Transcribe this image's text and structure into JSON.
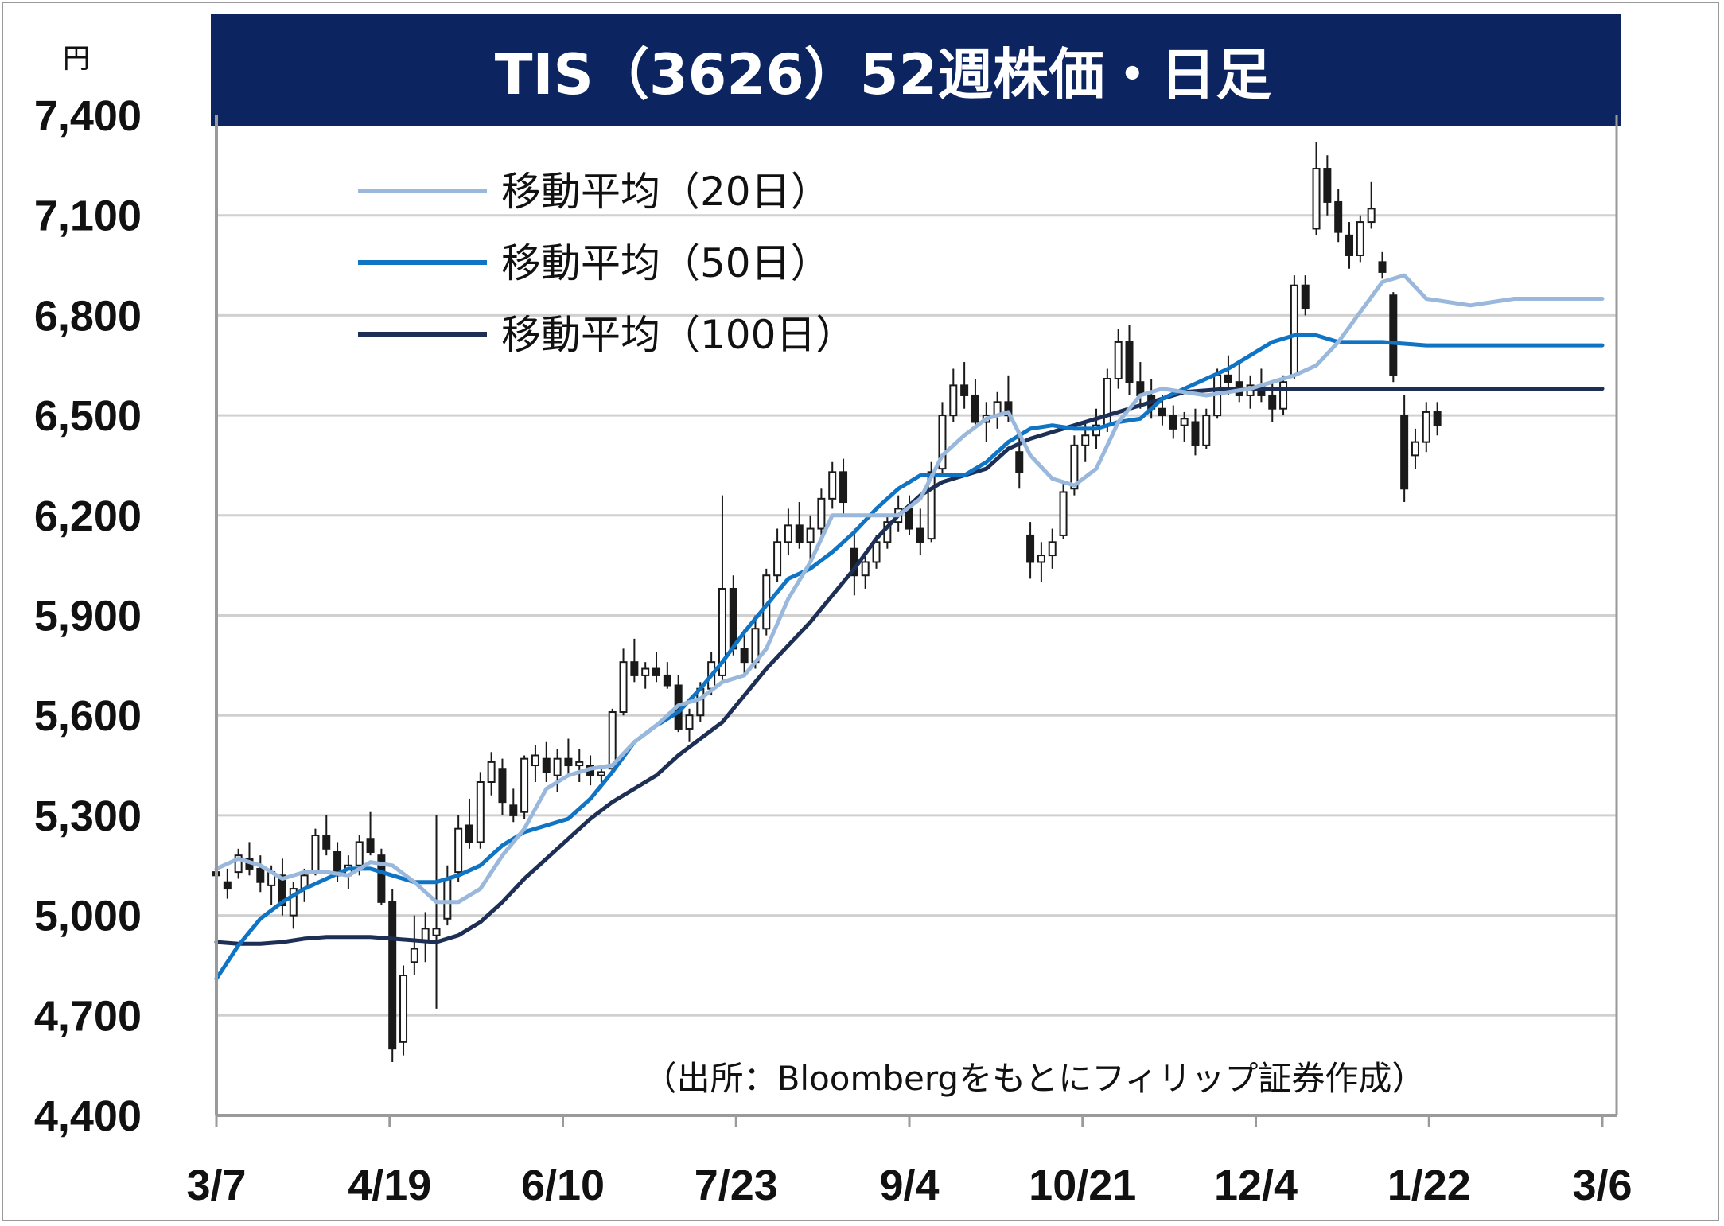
{
  "chart_data": {
    "type": "line",
    "title": "TIS（3626）52週株価・日足",
    "unit": "円",
    "source": "（出所：Bloombergをもとにフィリップ証券作成）",
    "ylim": [
      4400,
      7400
    ],
    "yticks": [
      7400,
      7100,
      6800,
      6500,
      6200,
      5900,
      5600,
      5300,
      5000,
      4700,
      4400
    ],
    "ytick_labels": [
      "7,400",
      "7,100",
      "6,800",
      "6,500",
      "6,200",
      "5,900",
      "5,600",
      "5,300",
      "5,000",
      "4,700",
      "4,400"
    ],
    "xtick_labels": [
      "3/7",
      "4/19",
      "6/10",
      "7/23",
      "9/4",
      "10/21",
      "12/4",
      "1/22",
      "3/6"
    ],
    "grid": true,
    "legend_position": "top-left",
    "colors": {
      "title_bg": "#0c2460",
      "candle_stroke": "#1a1a1a",
      "ma20": "#9ab8dc",
      "ma50": "#1074c4",
      "ma100": "#1d2f55",
      "grid": "#d0d0d0",
      "axis": "#9a9a9a"
    },
    "series": [
      {
        "name": "移動平均（20日）",
        "key": "ma20",
        "x": [
          0,
          4,
          8,
          12,
          16,
          20,
          24,
          28,
          32,
          36,
          40,
          44,
          48,
          52,
          56,
          60,
          64,
          68,
          72,
          76,
          80,
          84,
          88,
          92,
          96,
          100,
          104,
          108,
          112,
          116,
          120,
          124,
          128,
          132,
          136,
          140,
          144,
          148,
          152,
          156,
          160,
          164,
          168,
          172,
          176,
          180,
          184,
          188,
          192,
          196,
          200,
          204,
          208,
          212,
          216,
          220,
          224,
          228,
          232,
          236,
          240,
          244,
          248,
          252
        ],
        "values": [
          5140,
          5170,
          5150,
          5110,
          5130,
          5130,
          5120,
          5160,
          5150,
          5100,
          5040,
          5040,
          5080,
          5180,
          5260,
          5380,
          5420,
          5440,
          5450,
          5520,
          5570,
          5630,
          5650,
          5700,
          5720,
          5800,
          5950,
          6060,
          6200,
          6200,
          6200,
          6200,
          6250,
          6380,
          6440,
          6490,
          6510,
          6380,
          6310,
          6290,
          6340,
          6480,
          6560,
          6580,
          6570,
          6560,
          6570,
          6580,
          6600,
          6620,
          6650,
          6720,
          6810,
          6900,
          6920,
          6850,
          6840,
          6830,
          6840,
          6850,
          6850,
          6850,
          6850,
          6850
        ]
      },
      {
        "name": "移動平均（50日）",
        "key": "ma50",
        "x": [
          0,
          4,
          8,
          12,
          16,
          20,
          24,
          28,
          32,
          36,
          40,
          44,
          48,
          52,
          56,
          60,
          64,
          68,
          72,
          76,
          80,
          84,
          88,
          92,
          96,
          100,
          104,
          108,
          112,
          116,
          120,
          124,
          128,
          132,
          136,
          140,
          144,
          148,
          152,
          156,
          160,
          164,
          168,
          172,
          176,
          180,
          184,
          188,
          192,
          196,
          200,
          204,
          208,
          212,
          216,
          220,
          224,
          228,
          232,
          236,
          240,
          244,
          248,
          252
        ],
        "values": [
          4810,
          4910,
          4990,
          5040,
          5080,
          5110,
          5140,
          5140,
          5120,
          5100,
          5100,
          5120,
          5150,
          5210,
          5250,
          5270,
          5290,
          5350,
          5430,
          5520,
          5570,
          5610,
          5680,
          5760,
          5850,
          5930,
          6010,
          6040,
          6090,
          6150,
          6220,
          6280,
          6320,
          6320,
          6320,
          6360,
          6420,
          6460,
          6470,
          6460,
          6460,
          6480,
          6490,
          6550,
          6580,
          6610,
          6640,
          6680,
          6720,
          6740,
          6740,
          6720,
          6720,
          6720,
          6715,
          6710,
          6710,
          6710,
          6710,
          6710,
          6710,
          6710,
          6710,
          6710
        ]
      },
      {
        "name": "移動平均（100日）",
        "key": "ma100",
        "x": [
          0,
          4,
          8,
          12,
          16,
          20,
          24,
          28,
          32,
          36,
          40,
          44,
          48,
          52,
          56,
          60,
          64,
          68,
          72,
          76,
          80,
          84,
          88,
          92,
          96,
          100,
          104,
          108,
          112,
          116,
          120,
          124,
          128,
          132,
          136,
          140,
          144,
          148,
          152,
          156,
          160,
          164,
          168,
          172,
          176,
          180,
          184,
          188,
          192,
          196,
          200,
          204,
          208,
          212,
          216,
          220,
          224,
          228,
          232,
          236,
          240,
          244,
          248,
          252
        ],
        "values": [
          4920,
          4915,
          4915,
          4920,
          4930,
          4935,
          4935,
          4935,
          4930,
          4925,
          4920,
          4940,
          4980,
          5040,
          5110,
          5170,
          5230,
          5290,
          5340,
          5380,
          5420,
          5480,
          5530,
          5580,
          5660,
          5740,
          5810,
          5880,
          5960,
          6040,
          6130,
          6200,
          6260,
          6300,
          6320,
          6340,
          6400,
          6430,
          6450,
          6470,
          6490,
          6510,
          6530,
          6550,
          6570,
          6575,
          6580,
          6580,
          6580,
          6580,
          6580,
          6580,
          6580,
          6580,
          6580,
          6580,
          6580,
          6580,
          6580,
          6580,
          6580,
          6580,
          6580,
          6580
        ]
      }
    ],
    "candles": [
      [
        0,
        5130,
        5160,
        5080,
        5120
      ],
      [
        2,
        5100,
        5140,
        5050,
        5080
      ],
      [
        4,
        5130,
        5200,
        5110,
        5180
      ],
      [
        6,
        5170,
        5220,
        5120,
        5140
      ],
      [
        8,
        5140,
        5180,
        5070,
        5100
      ],
      [
        10,
        5090,
        5150,
        5030,
        5130
      ],
      [
        12,
        5120,
        5170,
        5000,
        5030
      ],
      [
        14,
        5000,
        5100,
        4960,
        5080
      ],
      [
        16,
        5080,
        5140,
        5040,
        5120
      ],
      [
        18,
        5130,
        5260,
        5120,
        5240
      ],
      [
        20,
        5240,
        5300,
        5180,
        5200
      ],
      [
        22,
        5190,
        5220,
        5100,
        5120
      ],
      [
        24,
        5120,
        5180,
        5080,
        5150
      ],
      [
        26,
        5150,
        5240,
        5120,
        5220
      ],
      [
        28,
        5230,
        5310,
        5180,
        5190
      ],
      [
        30,
        5180,
        5200,
        5030,
        5040
      ],
      [
        32,
        5040,
        5080,
        4560,
        4600
      ],
      [
        34,
        4620,
        4850,
        4580,
        4820
      ],
      [
        36,
        4860,
        5000,
        4820,
        4900
      ],
      [
        38,
        4920,
        5010,
        4860,
        4960
      ],
      [
        40,
        4940,
        5300,
        4720,
        4960
      ],
      [
        42,
        4990,
        5150,
        4970,
        5110
      ],
      [
        44,
        5130,
        5300,
        5100,
        5260
      ],
      [
        46,
        5270,
        5350,
        5200,
        5220
      ],
      [
        48,
        5220,
        5430,
        5200,
        5400
      ],
      [
        50,
        5400,
        5490,
        5360,
        5460
      ],
      [
        52,
        5440,
        5470,
        5300,
        5340
      ],
      [
        54,
        5330,
        5380,
        5280,
        5300
      ],
      [
        56,
        5310,
        5480,
        5290,
        5470
      ],
      [
        58,
        5450,
        5510,
        5400,
        5480
      ],
      [
        60,
        5470,
        5520,
        5400,
        5430
      ],
      [
        62,
        5420,
        5500,
        5370,
        5470
      ],
      [
        64,
        5470,
        5530,
        5420,
        5450
      ],
      [
        66,
        5450,
        5500,
        5400,
        5460
      ],
      [
        68,
        5450,
        5480,
        5390,
        5420
      ],
      [
        70,
        5420,
        5450,
        5380,
        5430
      ],
      [
        72,
        5440,
        5620,
        5430,
        5610
      ],
      [
        74,
        5610,
        5800,
        5600,
        5760
      ],
      [
        76,
        5760,
        5830,
        5700,
        5720
      ],
      [
        78,
        5720,
        5760,
        5680,
        5740
      ],
      [
        80,
        5740,
        5790,
        5700,
        5720
      ],
      [
        82,
        5720,
        5760,
        5680,
        5690
      ],
      [
        84,
        5690,
        5720,
        5550,
        5560
      ],
      [
        86,
        5560,
        5620,
        5520,
        5600
      ],
      [
        88,
        5600,
        5700,
        5580,
        5680
      ],
      [
        90,
        5680,
        5790,
        5660,
        5760
      ],
      [
        92,
        5720,
        6260,
        5700,
        5980
      ],
      [
        94,
        5980,
        6020,
        5780,
        5800
      ],
      [
        96,
        5800,
        5860,
        5720,
        5760
      ],
      [
        98,
        5760,
        5900,
        5740,
        5860
      ],
      [
        100,
        5860,
        6040,
        5840,
        6020
      ],
      [
        102,
        6020,
        6160,
        6000,
        6120
      ],
      [
        104,
        6120,
        6220,
        6080,
        6170
      ],
      [
        106,
        6170,
        6240,
        6100,
        6120
      ],
      [
        108,
        6120,
        6200,
        6060,
        6160
      ],
      [
        110,
        6160,
        6280,
        6140,
        6250
      ],
      [
        112,
        6250,
        6360,
        6220,
        6330
      ],
      [
        114,
        6330,
        6370,
        6200,
        6240
      ],
      [
        116,
        6100,
        6160,
        5960,
        6020
      ],
      [
        118,
        6020,
        6080,
        5980,
        6060
      ],
      [
        120,
        6060,
        6140,
        6040,
        6120
      ],
      [
        122,
        6120,
        6200,
        6100,
        6180
      ],
      [
        124,
        6180,
        6260,
        6150,
        6220
      ],
      [
        126,
        6220,
        6260,
        6140,
        6160
      ],
      [
        128,
        6160,
        6220,
        6080,
        6120
      ],
      [
        130,
        6130,
        6360,
        6120,
        6330
      ],
      [
        132,
        6340,
        6540,
        6320,
        6500
      ],
      [
        134,
        6500,
        6640,
        6480,
        6590
      ],
      [
        136,
        6590,
        6660,
        6520,
        6560
      ],
      [
        138,
        6560,
        6610,
        6460,
        6480
      ],
      [
        140,
        6480,
        6540,
        6420,
        6500
      ],
      [
        142,
        6500,
        6570,
        6460,
        6540
      ],
      [
        144,
        6540,
        6620,
        6480,
        6500
      ],
      [
        146,
        6390,
        6440,
        6280,
        6330
      ],
      [
        148,
        6140,
        6180,
        6010,
        6060
      ],
      [
        150,
        6060,
        6120,
        6000,
        6080
      ],
      [
        152,
        6080,
        6160,
        6040,
        6120
      ],
      [
        154,
        6140,
        6300,
        6130,
        6270
      ],
      [
        156,
        6280,
        6440,
        6260,
        6410
      ],
      [
        158,
        6410,
        6480,
        6360,
        6440
      ],
      [
        160,
        6440,
        6520,
        6400,
        6470
      ],
      [
        162,
        6470,
        6640,
        6450,
        6610
      ],
      [
        164,
        6610,
        6760,
        6580,
        6720
      ],
      [
        166,
        6720,
        6770,
        6560,
        6600
      ],
      [
        168,
        6600,
        6660,
        6520,
        6560
      ],
      [
        170,
        6560,
        6610,
        6490,
        6520
      ],
      [
        172,
        6520,
        6560,
        6470,
        6500
      ],
      [
        174,
        6500,
        6530,
        6430,
        6460
      ],
      [
        176,
        6470,
        6510,
        6420,
        6490
      ],
      [
        178,
        6480,
        6520,
        6380,
        6410
      ],
      [
        180,
        6410,
        6520,
        6400,
        6500
      ],
      [
        182,
        6500,
        6640,
        6490,
        6620
      ],
      [
        184,
        6620,
        6680,
        6560,
        6600
      ],
      [
        186,
        6600,
        6660,
        6540,
        6560
      ],
      [
        188,
        6560,
        6620,
        6520,
        6590
      ],
      [
        190,
        6590,
        6640,
        6540,
        6560
      ],
      [
        192,
        6560,
        6600,
        6480,
        6520
      ],
      [
        194,
        6520,
        6620,
        6500,
        6600
      ],
      [
        196,
        6620,
        6920,
        6610,
        6890
      ],
      [
        198,
        6890,
        6920,
        6800,
        6820
      ],
      [
        200,
        7060,
        7320,
        7040,
        7240
      ],
      [
        202,
        7240,
        7280,
        7100,
        7140
      ],
      [
        204,
        7140,
        7180,
        7020,
        7050
      ],
      [
        206,
        7040,
        7080,
        6940,
        6980
      ],
      [
        208,
        6980,
        7100,
        6960,
        7080
      ],
      [
        210,
        7080,
        7200,
        7060,
        7120
      ],
      [
        212,
        6960,
        6990,
        6910,
        6930
      ],
      [
        214,
        6860,
        6870,
        6600,
        6620
      ],
      [
        216,
        6500,
        6560,
        6240,
        6280
      ],
      [
        218,
        6380,
        6460,
        6340,
        6420
      ],
      [
        220,
        6420,
        6540,
        6390,
        6510
      ],
      [
        222,
        6510,
        6540,
        6440,
        6470
      ]
    ]
  }
}
